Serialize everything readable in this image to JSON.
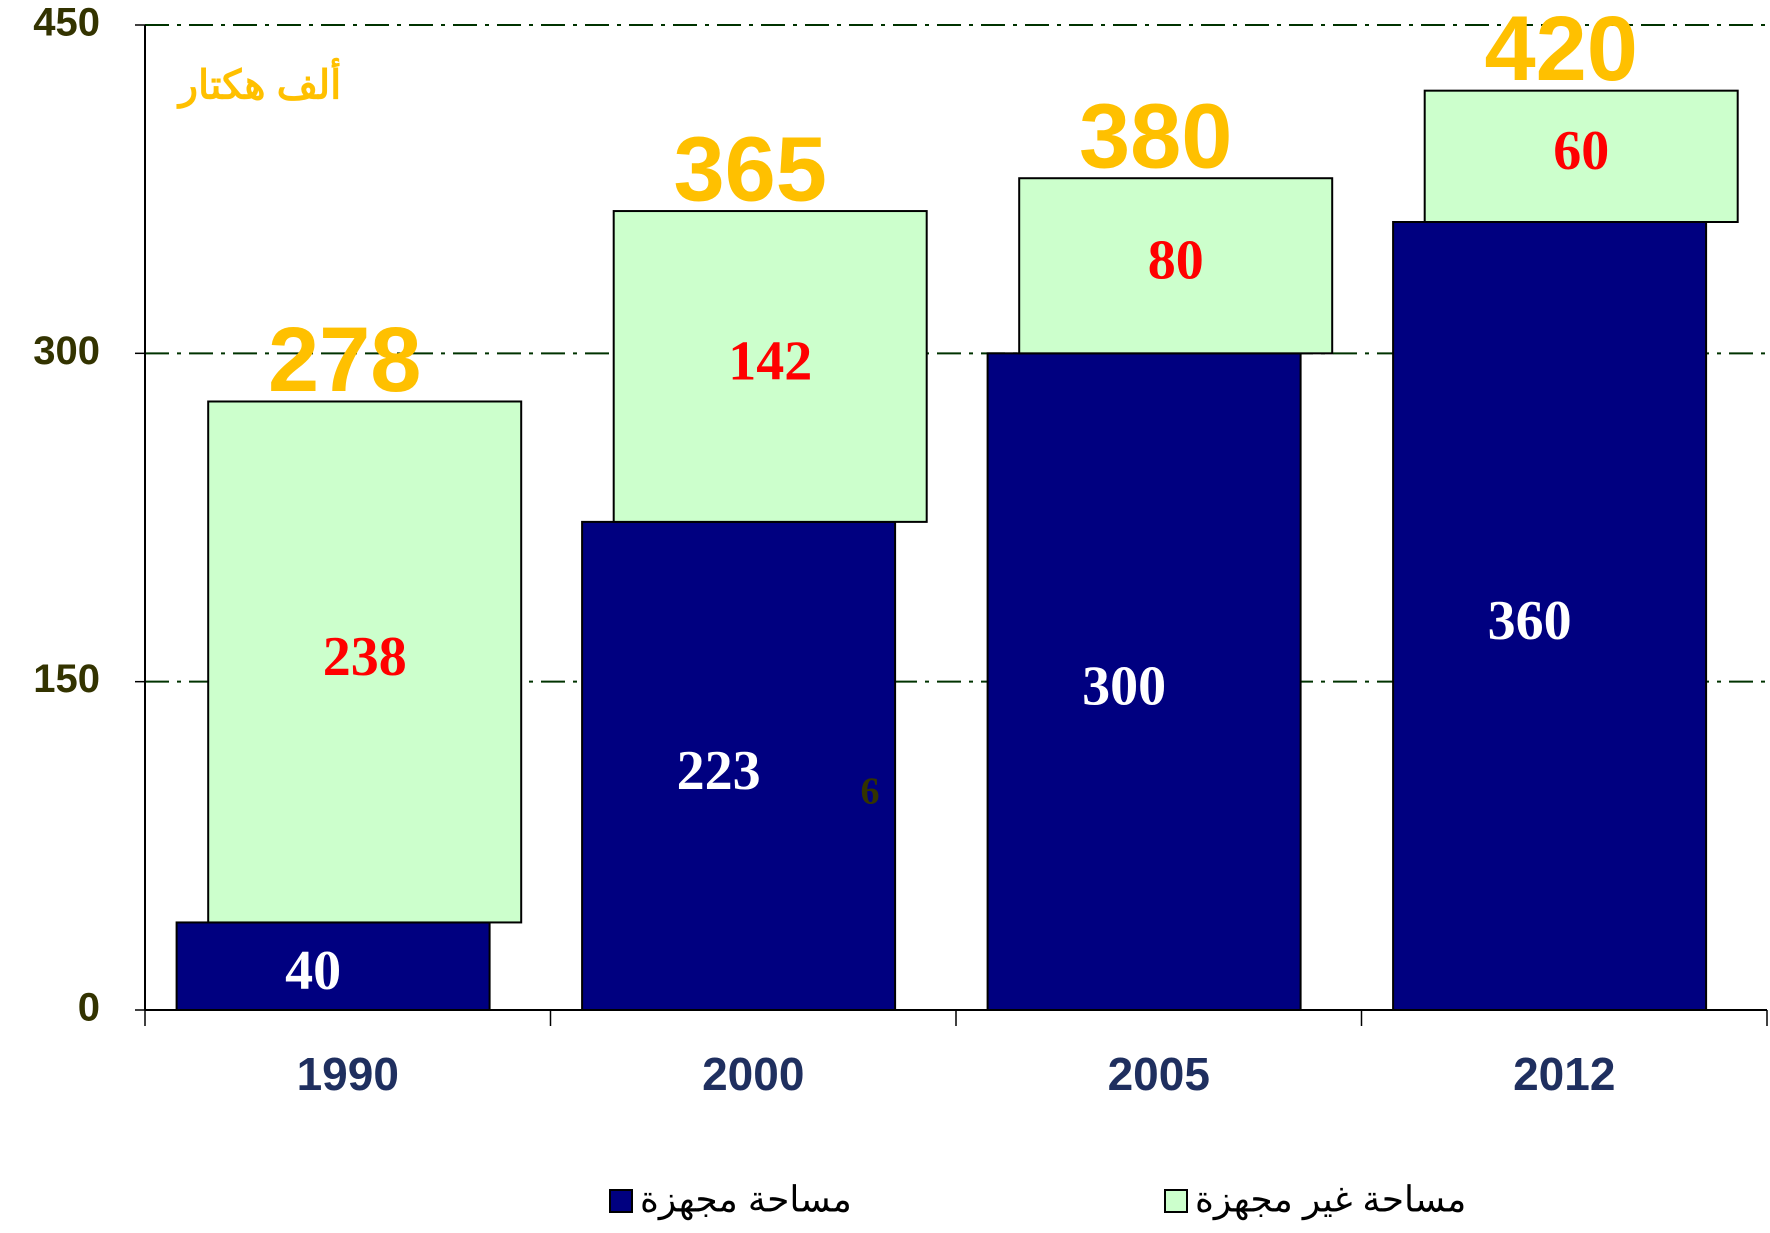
{
  "chart_data": {
    "type": "stacked_bar",
    "unit_label": "ألف هكتار",
    "categories": [
      "1990",
      "2000",
      "2005",
      "2012"
    ],
    "series": [
      {
        "name": "مساحة مجهزة",
        "color": "#000080",
        "label_color": "#ffffff",
        "values": [
          40,
          223,
          300,
          360
        ]
      },
      {
        "name": "مساحة غير مجهزة",
        "color": "#ccffcc",
        "label_color": "#ff0000",
        "values": [
          238,
          142,
          80,
          60
        ]
      }
    ],
    "total_labels": [
      "278",
      "365",
      "380",
      "420"
    ],
    "stray_label": "6",
    "ylim": [
      0,
      450
    ],
    "yticks": [
      0,
      150,
      300,
      450
    ],
    "grid": true
  }
}
